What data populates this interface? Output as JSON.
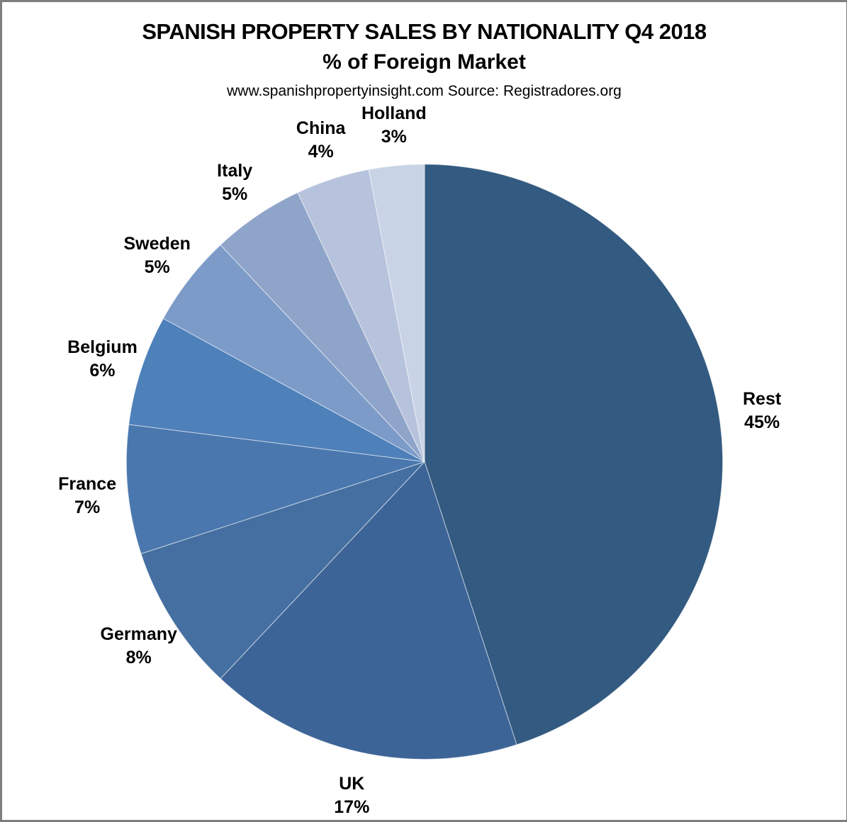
{
  "header": {
    "title": "SPANISH PROPERTY SALES BY NATIONALITY Q4 2018",
    "subtitle": "% of Foreign Market",
    "source": "www.spanishpropertyinsight.com Source: Registradores.org"
  },
  "chart_data": {
    "type": "pie",
    "title": "SPANISH PROPERTY SALES BY NATIONALITY Q4 2018",
    "subtitle": "% of Foreign Market",
    "source": "www.spanishpropertyinsight.com Source: Registradores.org",
    "unit": "%",
    "start_angle_deg": 0,
    "direction": "clockwise",
    "legend": "none",
    "labels_position": "outside",
    "slices": [
      {
        "label": "Rest",
        "value": 45,
        "pct_label": "45%",
        "color": "#335A80"
      },
      {
        "label": "UK",
        "value": 17,
        "pct_label": "17%",
        "color": "#3D6497"
      },
      {
        "label": "Germany",
        "value": 8,
        "pct_label": "8%",
        "color": "#456FA1"
      },
      {
        "label": "France",
        "value": 7,
        "pct_label": "7%",
        "color": "#4A77AD"
      },
      {
        "label": "Belgium",
        "value": 6,
        "pct_label": "6%",
        "color": "#4E80BA"
      },
      {
        "label": "Sweden",
        "value": 5,
        "pct_label": "5%",
        "color": "#7C9BC8"
      },
      {
        "label": "Italy",
        "value": 5,
        "pct_label": "5%",
        "color": "#8FA4C9"
      },
      {
        "label": "China",
        "value": 4,
        "pct_label": "4%",
        "color": "#B7C3DC"
      },
      {
        "label": "Holland",
        "value": 3,
        "pct_label": "3%",
        "color": "#C9D3E6"
      }
    ]
  }
}
